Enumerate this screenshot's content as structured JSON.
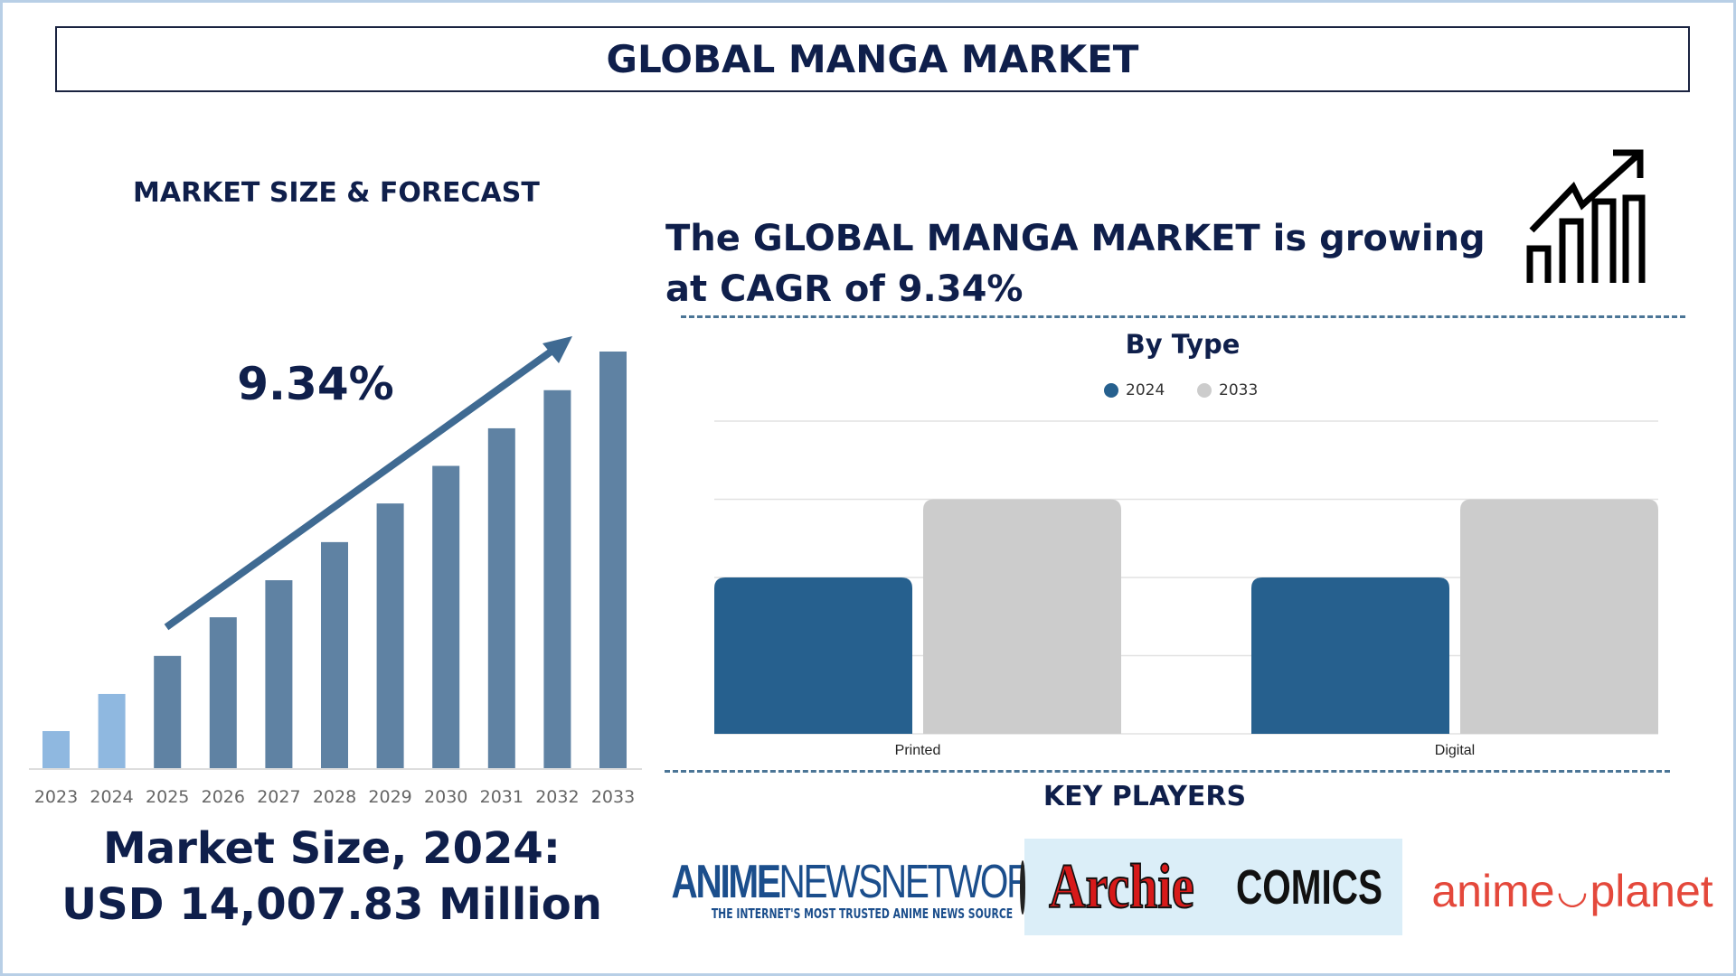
{
  "title": "GLOBAL MANGA MARKET",
  "left_panel": {
    "heading": "MARKET SIZE & FORECAST",
    "cagr_label": "9.34%",
    "market_size_line1": "Market Size, 2024:",
    "market_size_line2": "USD 14,007.83 Million"
  },
  "headline": {
    "line1": "The GLOBAL MANGA MARKET is growing",
    "line2": "at CAGR of 9.34%",
    "icon": "growth-chart-icon"
  },
  "key_players": {
    "heading": "KEY PLAYERS",
    "logos": [
      {
        "name": "ANIMENEWSNETWORK",
        "main_a": "ANIME",
        "main_b": "NEWSNETWORK",
        "tagline": "THE INTERNET'S MOST TRUSTED ANIME NEWS SOURCE"
      },
      {
        "name": "Archie Comics",
        "a": "Archie",
        "b": "COMICS"
      },
      {
        "name": "anime-planet",
        "a": "anime",
        "b": "planet"
      }
    ]
  },
  "colors": {
    "navy": "#0f1f4b",
    "bar_past": "#8fb8e0",
    "bar_forecast": "#5f82a3",
    "arrow": "#3f6a92",
    "series_2024": "#26608e",
    "series_2033": "#cccccc"
  },
  "chart_data": [
    {
      "type": "bar",
      "title": "MARKET SIZE & FORECAST",
      "categories": [
        "2023",
        "2024",
        "2025",
        "2026",
        "2027",
        "2028",
        "2029",
        "2030",
        "2031",
        "2032",
        "2033"
      ],
      "values": [
        7000,
        14007.83,
        21200,
        28500,
        35500,
        42700,
        50000,
        57100,
        64200,
        71400,
        78700
      ],
      "unit": "USD Million",
      "annotation": "9.34%",
      "grid": false
    },
    {
      "type": "bar",
      "title": "By Type",
      "categories": [
        "Printed",
        "Digital"
      ],
      "series": [
        {
          "name": "2024",
          "values": [
            2,
            2
          ]
        },
        {
          "name": "2033",
          "values": [
            3,
            3
          ]
        }
      ],
      "ylim": [
        0,
        4
      ],
      "grid": true,
      "legend": "top-center"
    }
  ]
}
